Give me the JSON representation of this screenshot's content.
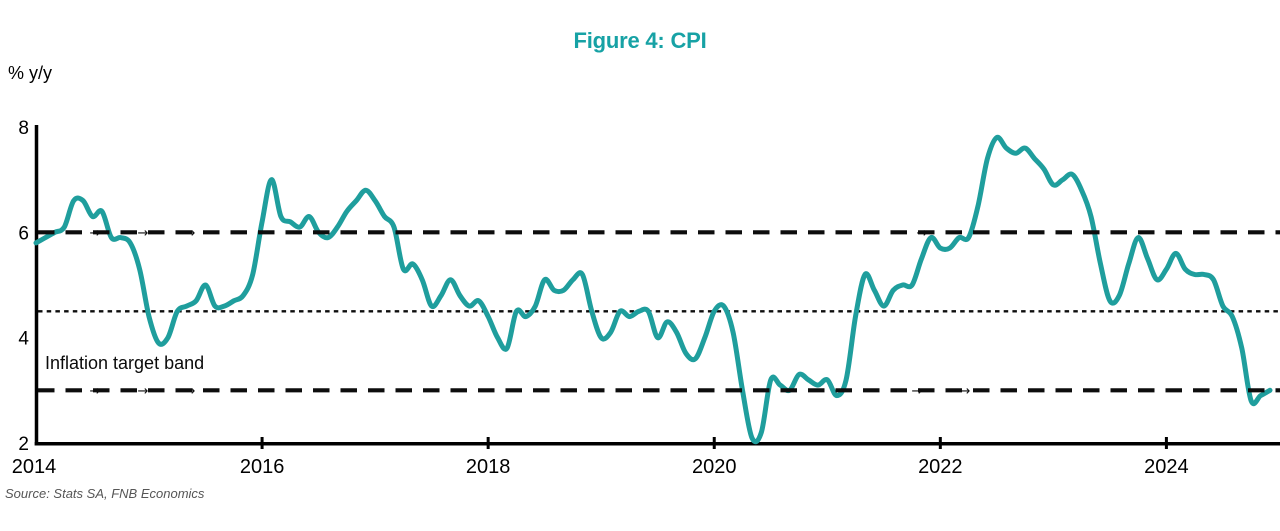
{
  "title": "Figure 4: CPI",
  "y_axis_unit_label": "% y/y",
  "annotation_label": "Inflation target band",
  "source_note": "Source: Stats SA, FNB Economics",
  "colors": {
    "line": "#1f9e9d",
    "title": "#17a2a5",
    "reference_lines": "#0d0d0d",
    "axis": "#000000",
    "tick_text": "#000000",
    "source_text": "#565656"
  },
  "chart_data": {
    "type": "line",
    "title": "Figure 4: CPI",
    "ylabel": "% y/y",
    "xlabel": "",
    "grid": false,
    "legend_position": "none",
    "ylim": [
      2,
      8
    ],
    "y_ticks": [
      2,
      4,
      6,
      8
    ],
    "x_tick_years": [
      2014,
      2016,
      2018,
      2020,
      2022,
      2024
    ],
    "series": [
      {
        "name": "CPI (% y/y)",
        "frequency": "monthly",
        "start": "2014-01",
        "end": "2024-12",
        "values_by_year": {
          "2014": [
            5.8,
            5.9,
            6.0,
            6.1,
            6.6,
            6.6,
            6.3,
            6.4,
            5.9,
            5.9,
            5.8,
            5.3
          ],
          "2015": [
            4.4,
            3.9,
            4.0,
            4.5,
            4.6,
            4.7,
            5.0,
            4.6,
            4.6,
            4.7,
            4.8,
            5.2
          ],
          "2016": [
            6.2,
            7.0,
            6.3,
            6.2,
            6.1,
            6.3,
            6.0,
            5.9,
            6.1,
            6.4,
            6.6,
            6.8
          ],
          "2017": [
            6.6,
            6.3,
            6.1,
            5.3,
            5.4,
            5.1,
            4.6,
            4.8,
            5.1,
            4.8,
            4.6,
            4.7
          ],
          "2018": [
            4.4,
            4.0,
            3.8,
            4.5,
            4.4,
            4.6,
            5.1,
            4.9,
            4.9,
            5.1,
            5.2,
            4.5
          ],
          "2019": [
            4.0,
            4.1,
            4.5,
            4.4,
            4.5,
            4.5,
            4.0,
            4.3,
            4.1,
            3.7,
            3.6,
            4.0
          ],
          "2020": [
            4.5,
            4.6,
            4.1,
            3.0,
            2.1,
            2.2,
            3.2,
            3.1,
            3.0,
            3.3,
            3.2,
            3.1
          ],
          "2021": [
            3.2,
            2.9,
            3.2,
            4.4,
            5.2,
            4.9,
            4.6,
            4.9,
            5.0,
            5.0,
            5.5,
            5.9
          ],
          "2022": [
            5.7,
            5.7,
            5.9,
            5.9,
            6.5,
            7.4,
            7.8,
            7.6,
            7.5,
            7.6,
            7.4,
            7.2
          ],
          "2023": [
            6.9,
            7.0,
            7.1,
            6.8,
            6.3,
            5.4,
            4.7,
            4.8,
            5.4,
            5.9,
            5.5,
            5.1
          ],
          "2024": [
            5.3,
            5.6,
            5.3,
            5.2,
            5.2,
            5.1,
            4.6,
            4.4,
            3.8,
            2.8,
            2.9,
            3.0
          ]
        }
      }
    ],
    "reference_lines": [
      {
        "value": 6,
        "style": "dashed",
        "role": "inflation-target-upper"
      },
      {
        "value": 4.5,
        "style": "dotted",
        "role": "inflation-target-midpoint"
      },
      {
        "value": 3,
        "style": "dashed",
        "role": "inflation-target-lower"
      }
    ],
    "annotation": "Inflation target band"
  },
  "decorations": {
    "arrow_glyph": "→",
    "arrows_on_upper_band": [
      95,
      143,
      190,
      922
    ],
    "arrows_on_lower_band": [
      95,
      143,
      190,
      917,
      965
    ]
  }
}
